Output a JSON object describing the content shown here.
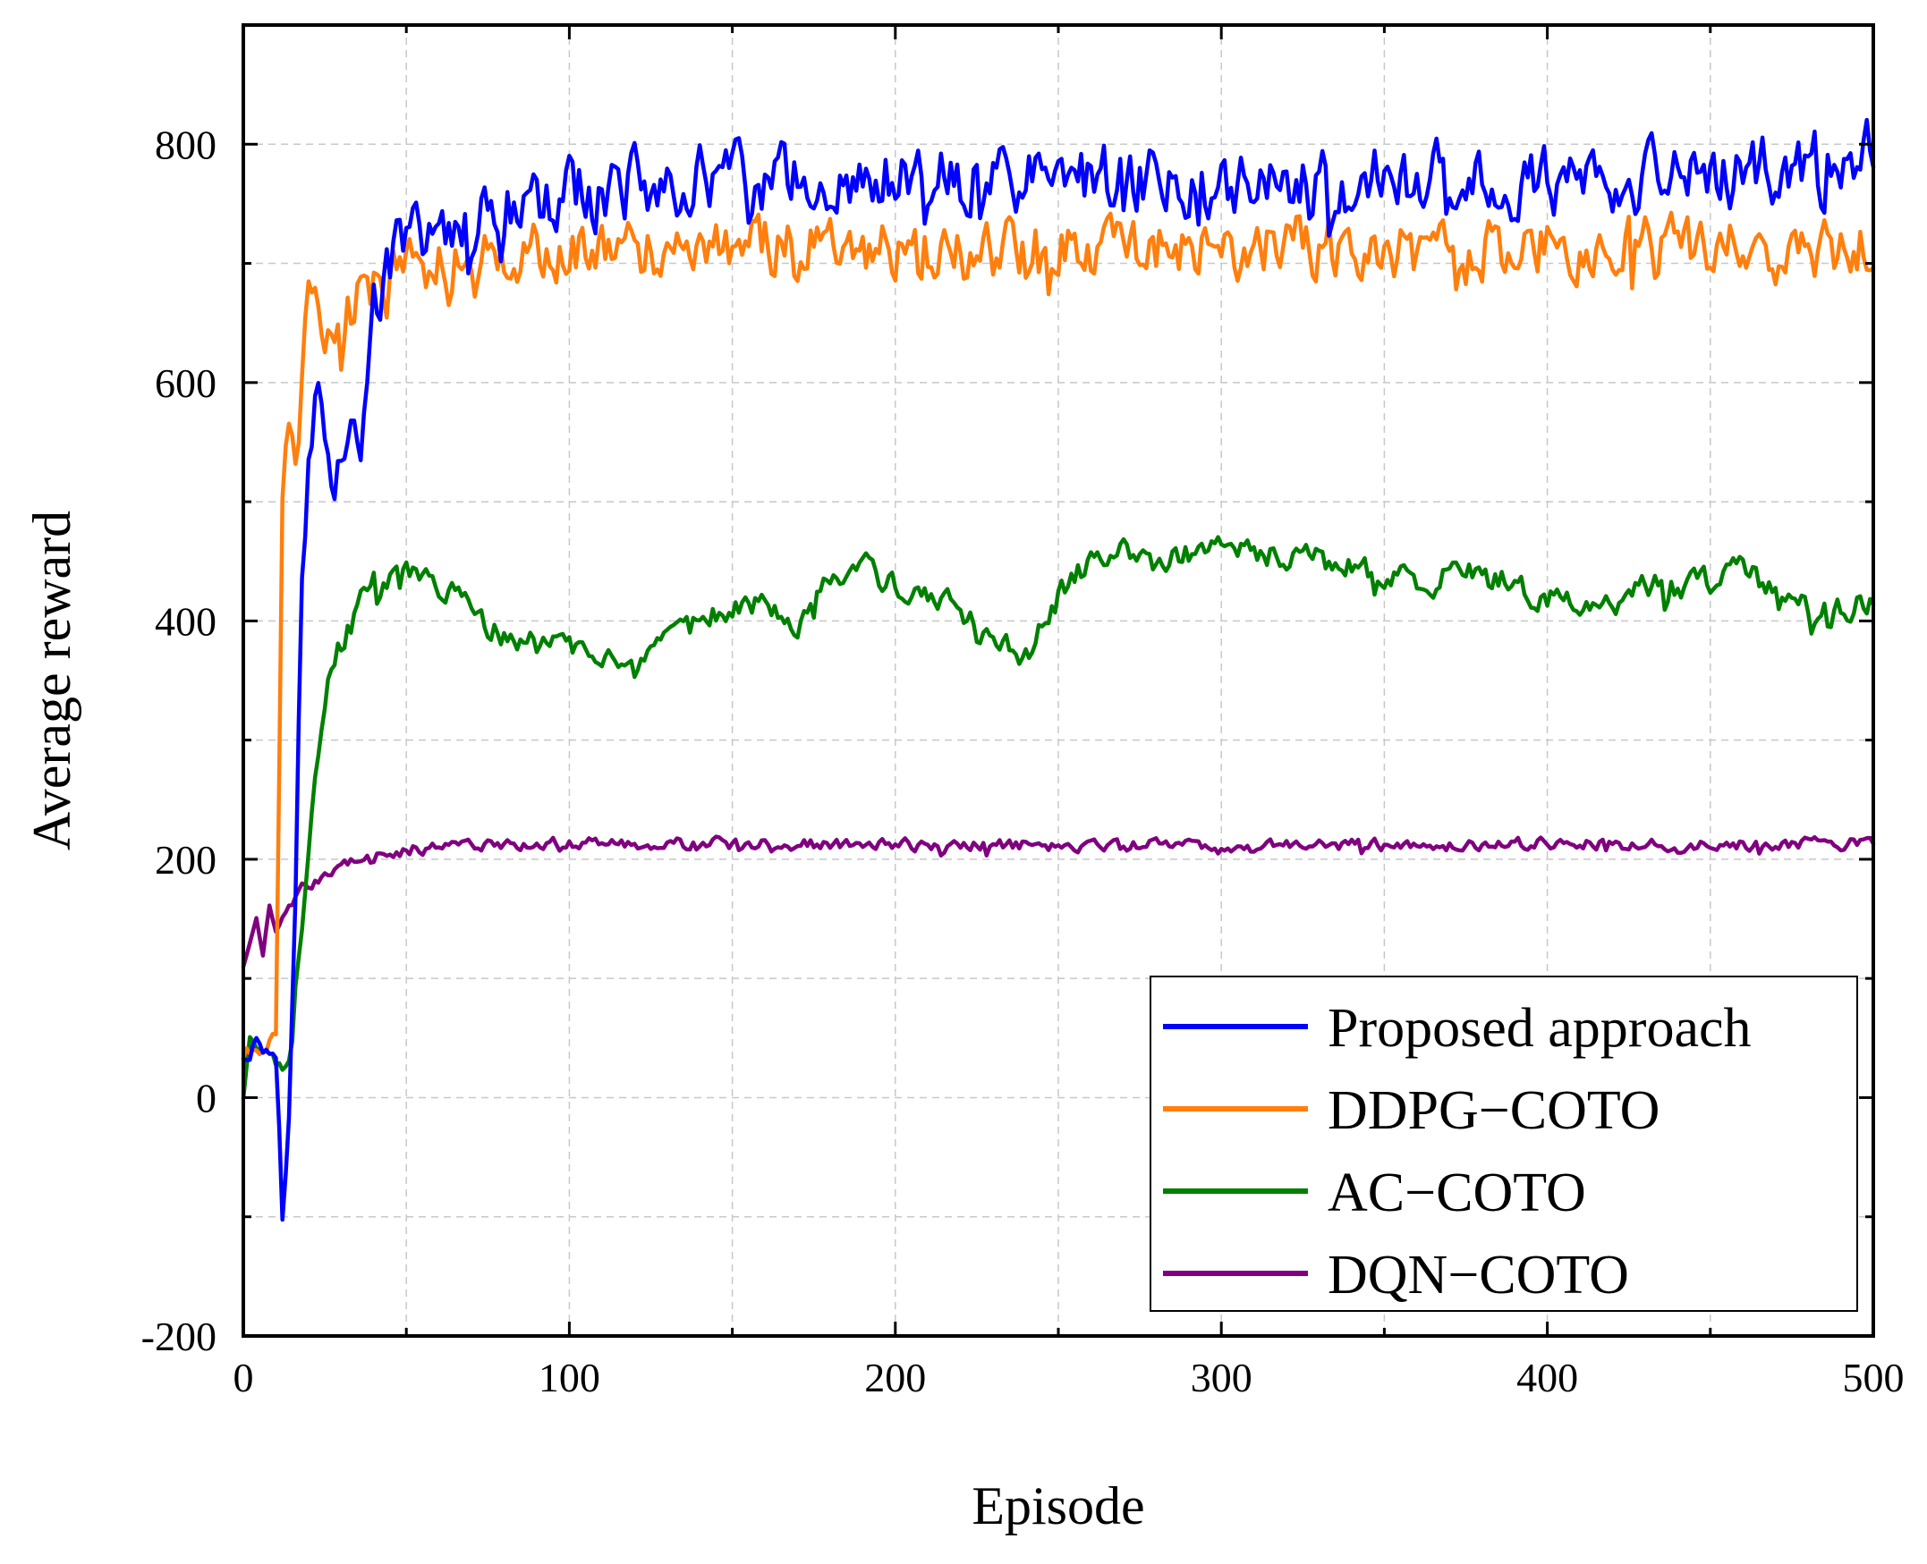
{
  "chart_data": {
    "type": "line",
    "title": "",
    "xlabel": "Episode",
    "ylabel": "Average reward",
    "xlim": [
      0,
      500
    ],
    "ylim": [
      -200,
      900
    ],
    "xticks": [
      0,
      100,
      200,
      300,
      400,
      500
    ],
    "xtick_labels": [
      "0",
      "100",
      "200",
      "300",
      "400",
      "500"
    ],
    "yticks": [
      -200,
      0,
      200,
      400,
      600,
      800
    ],
    "ytick_labels": [
      "-200",
      "0",
      "200",
      "400",
      "600",
      "800"
    ],
    "grid": true,
    "legend_position": "bottom-right",
    "series": [
      {
        "name": "Proposed approach",
        "color": "#0000ff",
        "x": [
          0,
          5,
          8,
          10,
          12,
          14,
          16,
          18,
          20,
          22,
          25,
          28,
          32,
          36,
          40,
          45,
          50,
          55,
          60,
          70,
          80,
          90,
          100,
          110,
          120,
          130,
          140,
          150,
          160,
          170,
          180,
          190,
          200,
          210,
          220,
          230,
          240,
          250,
          260,
          270,
          280,
          290,
          300,
          310,
          320,
          330,
          340,
          350,
          360,
          370,
          380,
          390,
          400,
          410,
          420,
          430,
          440,
          450,
          460,
          470,
          480,
          490,
          500
        ],
        "values": [
          40,
          45,
          40,
          35,
          -80,
          20,
          200,
          420,
          520,
          600,
          560,
          540,
          580,
          520,
          650,
          700,
          720,
          720,
          730,
          740,
          745,
          750,
          755,
          760,
          765,
          765,
          770,
          770,
          770,
          770,
          770,
          770,
          770,
          770,
          770,
          770,
          770,
          770,
          770,
          770,
          770,
          770,
          770,
          770,
          770,
          770,
          770,
          770,
          770,
          770,
          770,
          770,
          770,
          770,
          770,
          770,
          770,
          770,
          775,
          780,
          780,
          790,
          790
        ],
        "noise": 45
      },
      {
        "name": "DDPG−COTO",
        "color": "#ff7f0e",
        "x": [
          0,
          5,
          8,
          10,
          12,
          14,
          16,
          18,
          20,
          22,
          25,
          28,
          32,
          36,
          40,
          45,
          50,
          55,
          60,
          70,
          80,
          90,
          100,
          120,
          140,
          160,
          180,
          200,
          220,
          240,
          260,
          280,
          300,
          320,
          340,
          360,
          380,
          400,
          420,
          440,
          460,
          480,
          500
        ],
        "values": [
          35,
          40,
          50,
          60,
          500,
          580,
          560,
          620,
          660,
          650,
          640,
          650,
          660,
          670,
          680,
          690,
          700,
          700,
          705,
          705,
          710,
          710,
          710,
          710,
          715,
          715,
          715,
          715,
          715,
          715,
          715,
          715,
          715,
          715,
          715,
          715,
          715,
          715,
          715,
          715,
          715,
          715,
          715
        ],
        "noise": 40
      },
      {
        "name": "AC−COTO",
        "color": "#008000",
        "x": [
          0,
          2,
          5,
          10,
          14,
          18,
          22,
          26,
          30,
          35,
          40,
          50,
          60,
          70,
          80,
          90,
          100,
          110,
          120,
          130,
          140,
          150,
          160,
          170,
          180,
          190,
          200,
          210,
          220,
          230,
          240,
          250,
          260,
          270,
          280,
          290,
          300,
          310,
          320,
          330,
          340,
          350,
          360,
          370,
          380,
          390,
          400,
          410,
          420,
          430,
          440,
          450,
          460,
          470,
          480,
          490,
          500
        ],
        "values": [
          0,
          50,
          40,
          30,
          40,
          150,
          260,
          340,
          380,
          410,
          430,
          440,
          430,
          410,
          385,
          380,
          380,
          375,
          350,
          380,
          400,
          410,
          420,
          400,
          440,
          445,
          430,
          420,
          410,
          380,
          370,
          420,
          450,
          455,
          450,
          455,
          460,
          460,
          450,
          450,
          445,
          440,
          430,
          440,
          440,
          430,
          420,
          410,
          415,
          430,
          430,
          435,
          445,
          420,
          415,
          410,
          420
        ],
        "noise": 18
      },
      {
        "name": "DQN−COTO",
        "color": "#800080",
        "x": [
          0,
          2,
          4,
          6,
          8,
          10,
          12,
          14,
          16,
          18,
          20,
          25,
          30,
          35,
          40,
          50,
          60,
          80,
          100,
          150,
          200,
          250,
          300,
          350,
          400,
          450,
          500
        ],
        "values": [
          110,
          130,
          150,
          120,
          160,
          140,
          150,
          160,
          170,
          175,
          180,
          190,
          195,
          200,
          205,
          208,
          210,
          212,
          213,
          213,
          212,
          212,
          212,
          212,
          213,
          213,
          213
        ],
        "noise": 8
      }
    ]
  }
}
